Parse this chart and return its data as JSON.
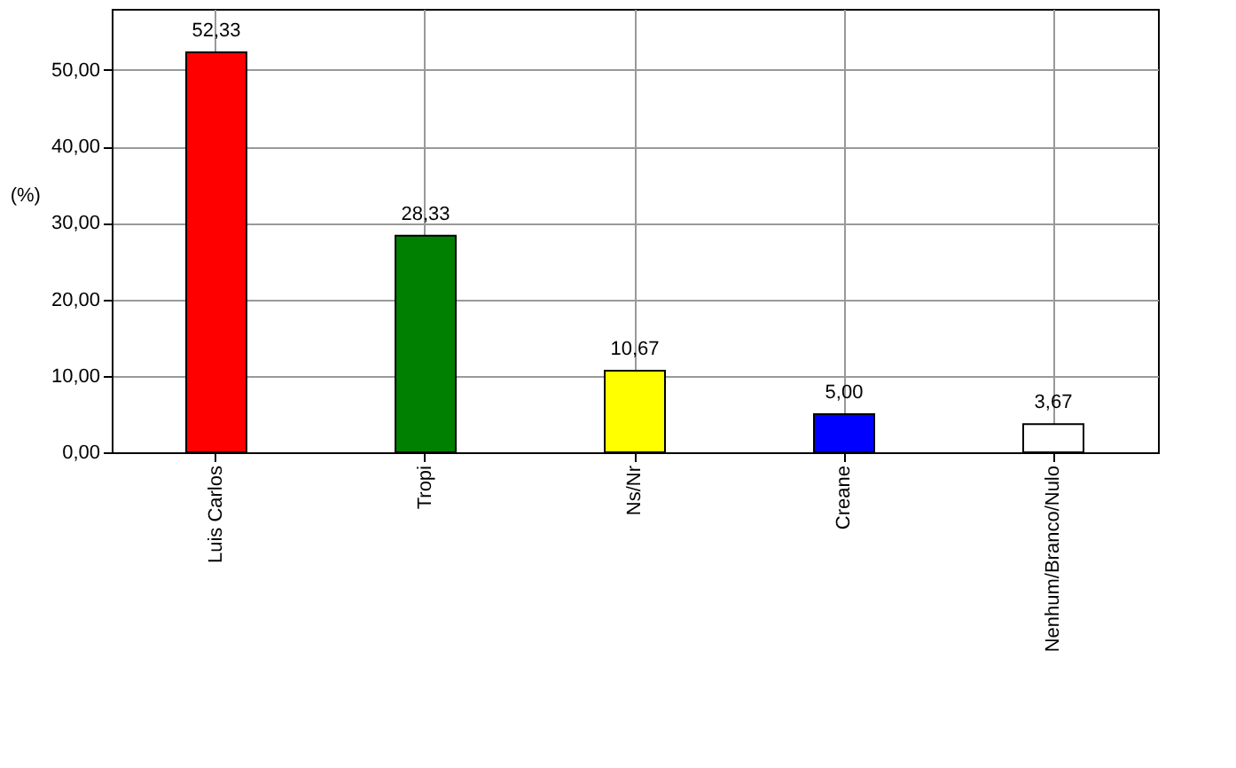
{
  "chart_data": {
    "type": "bar",
    "ylabel": "(%)",
    "categories": [
      "Luis Carlos",
      "Tropi",
      "Ns/Nr",
      "Creane",
      "Nenhum/Branco/Nulo"
    ],
    "values": [
      52.33,
      28.33,
      10.67,
      5.0,
      3.67
    ],
    "colors": [
      "#ff0000",
      "#008000",
      "#ffff00",
      "#0000ff",
      "#ffffff"
    ],
    "value_labels": [
      "52,33",
      "28,33",
      "10,67",
      "5,00",
      "3,67"
    ],
    "ylim": [
      0,
      58
    ],
    "yticks": [
      {
        "value": 0,
        "label": "0,00"
      },
      {
        "value": 10,
        "label": "10,00"
      },
      {
        "value": 20,
        "label": "20,00"
      },
      {
        "value": 30,
        "label": "30,00"
      },
      {
        "value": 40,
        "label": "40,00"
      },
      {
        "value": 50,
        "label": "50,00"
      }
    ],
    "grid": true
  }
}
